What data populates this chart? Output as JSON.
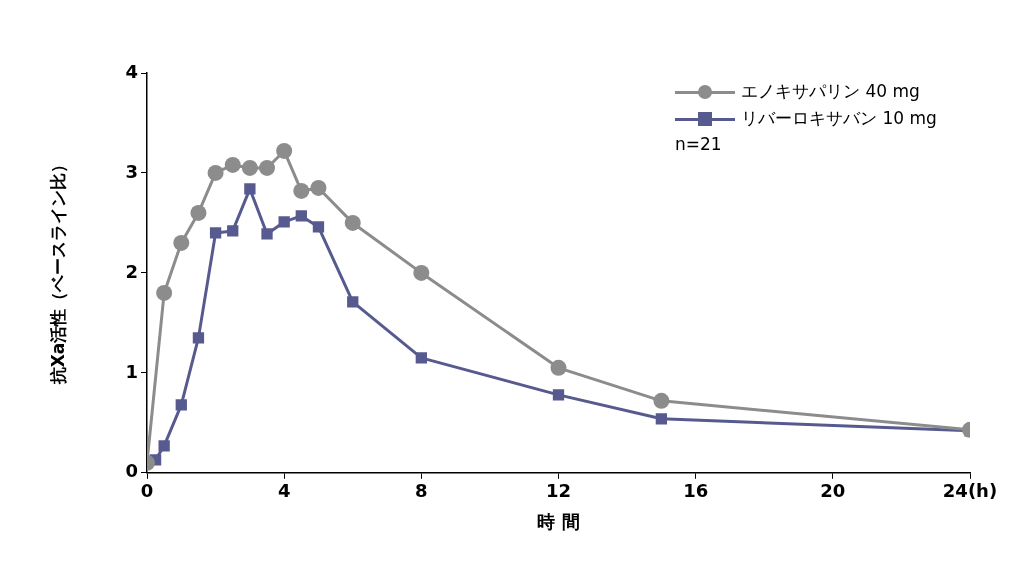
{
  "chart_data": {
    "type": "line",
    "xlabel": "時 間",
    "ylabel": "抗Xa活性（ベースライン比）",
    "xlim": [
      0,
      24
    ],
    "xticks": [
      0,
      4,
      8,
      12,
      16,
      20,
      {
        "value": 24,
        "label": "24(h)"
      }
    ],
    "ylim": [
      0,
      4
    ],
    "yticks": [
      0,
      1,
      2,
      3,
      4
    ],
    "grid": false,
    "legend": "top right",
    "annotations": [
      "n=21"
    ],
    "series": [
      {
        "name": "エノキサパリン 40 mg",
        "color": "#8c8c8c",
        "marker": "circle",
        "x": [
          0,
          0.5,
          1,
          1.5,
          2,
          2.5,
          3,
          3.5,
          4,
          4.5,
          5,
          6,
          8,
          12,
          15,
          24
        ],
        "values": [
          0.1,
          1.8,
          2.3,
          2.6,
          3.0,
          3.08,
          3.05,
          3.05,
          3.22,
          2.82,
          2.85,
          2.5,
          2.0,
          1.05,
          0.72,
          0.43
        ]
      },
      {
        "name": "リバーロキサバン 10 mg",
        "color": "#575a8f",
        "marker": "square",
        "x": [
          0.25,
          0.5,
          1,
          1.5,
          2,
          2.5,
          3,
          3.5,
          4,
          4.5,
          5,
          6,
          8,
          12,
          15,
          24
        ],
        "values": [
          0.13,
          0.27,
          0.68,
          1.35,
          2.4,
          2.42,
          2.84,
          2.39,
          2.51,
          2.57,
          2.46,
          1.71,
          1.15,
          0.78,
          0.54,
          0.42
        ]
      }
    ]
  }
}
